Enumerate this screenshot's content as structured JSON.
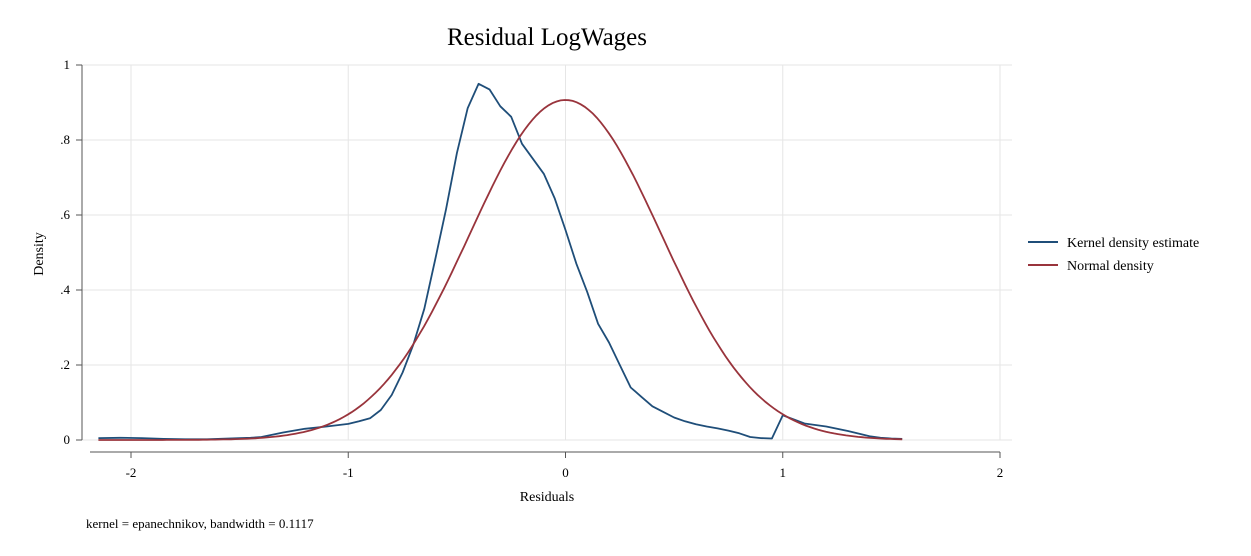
{
  "chart_data": {
    "type": "line",
    "title": "Residual LogWages",
    "xlabel": "Residuals",
    "ylabel": "Density",
    "xlim": [
      -2.15,
      2.0
    ],
    "ylim": [
      0,
      1.0
    ],
    "xticks": [
      -2,
      -1,
      0,
      1,
      2
    ],
    "xtick_labels": [
      "-2",
      "-1",
      "0",
      "1",
      "2"
    ],
    "yticks": [
      0,
      0.2,
      0.4,
      0.6,
      0.8,
      1.0
    ],
    "ytick_labels": [
      "0",
      ".2",
      ".4",
      ".6",
      ".8",
      "1"
    ],
    "grid": true,
    "legend_position": "right",
    "series": [
      {
        "name": "Kernel density estimate",
        "color": "#1f4e79",
        "x": [
          -2.15,
          -2.05,
          -1.95,
          -1.85,
          -1.75,
          -1.65,
          -1.55,
          -1.45,
          -1.4,
          -1.3,
          -1.2,
          -1.1,
          -1.0,
          -0.95,
          -0.9,
          -0.85,
          -0.8,
          -0.75,
          -0.7,
          -0.65,
          -0.6,
          -0.55,
          -0.5,
          -0.45,
          -0.4,
          -0.35,
          -0.3,
          -0.25,
          -0.2,
          -0.15,
          -0.1,
          -0.05,
          0.0,
          0.05,
          0.1,
          0.15,
          0.2,
          0.25,
          0.3,
          0.35,
          0.4,
          0.45,
          0.5,
          0.55,
          0.6,
          0.65,
          0.7,
          0.75,
          0.8,
          0.85,
          0.9,
          0.95,
          1.0,
          1.05,
          1.1,
          1.15,
          1.2,
          1.25,
          1.3,
          1.35,
          1.4,
          1.45,
          1.5,
          1.55
        ],
        "y": [
          0.005,
          0.006,
          0.005,
          0.003,
          0.002,
          0.002,
          0.004,
          0.006,
          0.008,
          0.02,
          0.03,
          0.036,
          0.043,
          0.05,
          0.058,
          0.08,
          0.12,
          0.18,
          0.255,
          0.35,
          0.48,
          0.615,
          0.765,
          0.885,
          0.95,
          0.935,
          0.89,
          0.862,
          0.79,
          0.75,
          0.71,
          0.645,
          0.56,
          0.47,
          0.395,
          0.31,
          0.26,
          0.2,
          0.14,
          0.115,
          0.09,
          0.075,
          0.06,
          0.05,
          0.042,
          0.036,
          0.031,
          0.025,
          0.018,
          0.008,
          0.005,
          0.004,
          0.066,
          0.055,
          0.044,
          0.04,
          0.036,
          0.03,
          0.024,
          0.017,
          0.01,
          0.006,
          0.004,
          0.003
        ]
      },
      {
        "name": "Normal density",
        "color": "#99343c",
        "mean": 0.0,
        "sd": 0.44,
        "x_range": [
          -2.15,
          1.55
        ]
      }
    ],
    "annotation": "kernel = epanechnikov, bandwidth = 0.1117"
  }
}
